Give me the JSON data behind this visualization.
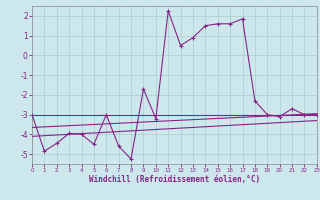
{
  "xlabel": "Windchill (Refroidissement éolien,°C)",
  "background_color": "#cce8ec",
  "grid_color": "#aacccc",
  "line_color": "#882288",
  "xlim": [
    0,
    23
  ],
  "ylim": [
    -5.5,
    2.5
  ],
  "yticks": [
    -5,
    -4,
    -3,
    -2,
    -1,
    0,
    1,
    2
  ],
  "xticks": [
    0,
    1,
    2,
    3,
    4,
    5,
    6,
    7,
    8,
    9,
    10,
    11,
    12,
    13,
    14,
    15,
    16,
    17,
    18,
    19,
    20,
    21,
    22,
    23
  ],
  "line1_x": [
    0,
    1,
    2,
    3,
    4,
    5,
    6,
    7,
    8,
    9,
    10,
    11,
    12,
    13,
    14,
    15,
    16,
    17,
    18,
    19,
    20,
    21,
    22,
    23
  ],
  "line1_y": [
    -3.0,
    -4.85,
    -4.45,
    -3.95,
    -4.0,
    -4.5,
    -3.0,
    -4.6,
    -5.25,
    -1.7,
    -3.2,
    2.25,
    0.5,
    0.9,
    1.5,
    1.6,
    1.6,
    1.85,
    -2.3,
    -3.0,
    -3.1,
    -2.7,
    -3.0,
    -3.0
  ],
  "line2_x": [
    0,
    23
  ],
  "line2_y": [
    -3.65,
    -2.95
  ],
  "line3_x": [
    0,
    23
  ],
  "line3_y": [
    -4.1,
    -3.3
  ],
  "line4_x": [
    0,
    23
  ],
  "line4_y": [
    -3.0,
    -3.0
  ]
}
